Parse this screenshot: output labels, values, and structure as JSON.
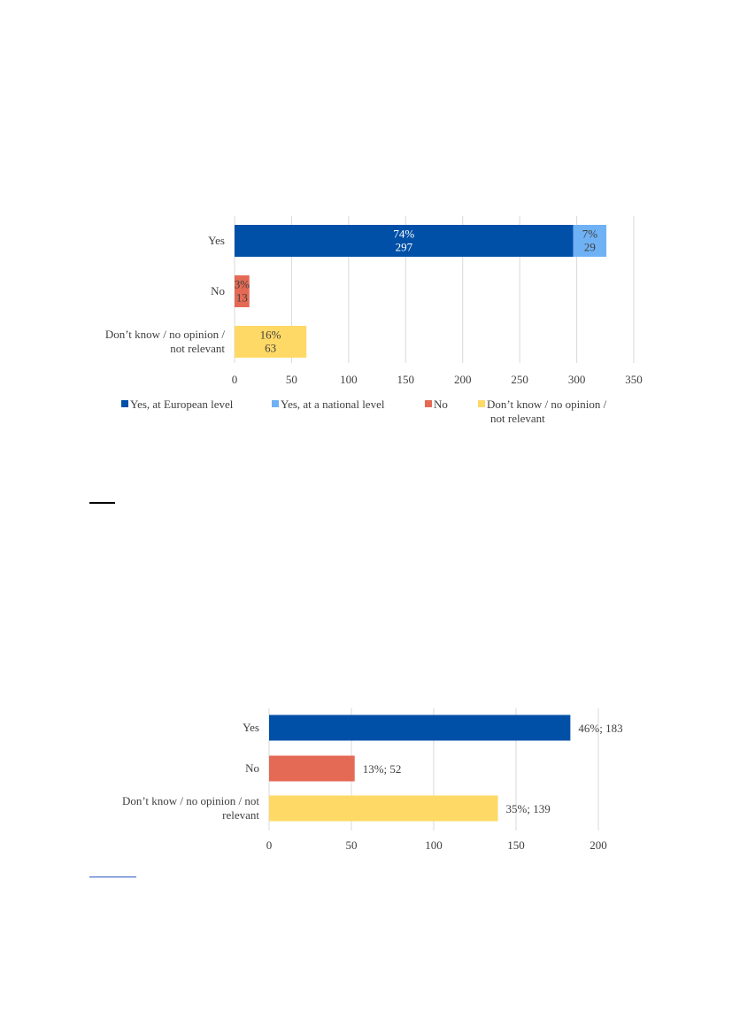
{
  "colors": {
    "yes_european": "#0050a8",
    "yes_national": "#6fb1f5",
    "no": "#e46a55",
    "dont_know": "#ffd966",
    "grid": "#d9d9d9",
    "text": "#404040",
    "link_rule_dark": "#000000",
    "link_rule_blue": "#2a52be"
  },
  "chart_data": [
    {
      "type": "bar",
      "orientation": "horizontal",
      "stacked": true,
      "categories": [
        "Yes",
        "No",
        "Don’t know / no opinion /\nnot relevant"
      ],
      "series": [
        {
          "name": "Yes, at European level",
          "values": [
            297,
            0,
            0
          ],
          "labels": [
            "74%\n297",
            "",
            ""
          ]
        },
        {
          "name": "Yes, at a national level",
          "values": [
            29,
            0,
            0
          ],
          "labels": [
            "7%\n29",
            "",
            ""
          ]
        },
        {
          "name": "No",
          "values": [
            0,
            13,
            0
          ],
          "labels": [
            "",
            "3%\n13",
            ""
          ]
        },
        {
          "name": "Don’t know / no opinion /\nnot relevant",
          "values": [
            0,
            0,
            63
          ],
          "labels": [
            "",
            "",
            "16%\n63"
          ]
        }
      ],
      "xlim": [
        0,
        350
      ],
      "xticks": [
        "0",
        "50",
        "100",
        "150",
        "200",
        "250",
        "300",
        "350"
      ],
      "grid": true,
      "legend": "bottom"
    },
    {
      "type": "bar",
      "orientation": "horizontal",
      "categories": [
        "Yes",
        "No",
        "Don’t know / no opinion / not\nrelevant"
      ],
      "values": [
        183,
        52,
        139
      ],
      "data_labels": [
        "46%; 183",
        "13%; 52",
        "35%; 139"
      ],
      "xlim": [
        0,
        200
      ],
      "xticks": [
        "0",
        "50",
        "100",
        "150",
        "200"
      ],
      "grid": true,
      "legend": "none"
    }
  ]
}
